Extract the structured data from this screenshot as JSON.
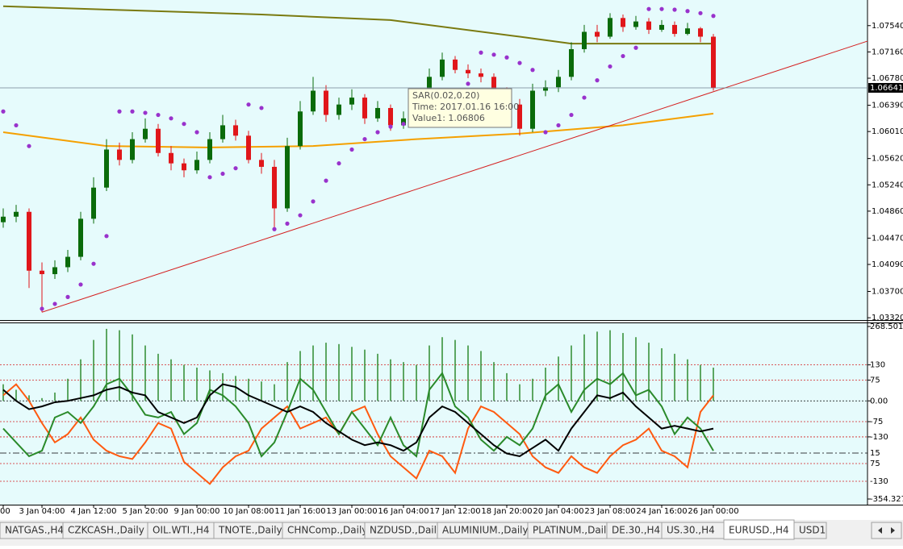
{
  "chart_data": [
    {
      "type": "candlestick",
      "grid": false,
      "bull_color": "#0a6b0a",
      "bear_color": "#e0161a",
      "categories": [
        "00",
        null,
        null,
        "3 Jan 04:00",
        null,
        null,
        null,
        "4 Jan 12:00",
        null,
        null,
        null,
        "5 Jan 20:00",
        null,
        null,
        null,
        "9 Jan 00:00",
        null,
        null,
        null,
        "10 Jan 08:00",
        null,
        null,
        null,
        "11 Jan 16:00",
        null,
        null,
        null,
        "13 Jan 00:00",
        null,
        null,
        null,
        "16 Jan 04:00",
        null,
        null,
        null,
        "17 Jan 12:00",
        null,
        null,
        null,
        "18 Jan 20:00",
        null,
        null,
        null,
        "20 Jan 04:00",
        null,
        null,
        null,
        "23 Jan 08:00",
        null,
        null,
        null,
        "24 Jan 16:00",
        null,
        null,
        null,
        "26 Jan 00:00"
      ],
      "open": [
        1.047,
        1.0478,
        1.0485,
        1.04,
        1.0395,
        1.0405,
        1.042,
        1.0475,
        1.052,
        1.0575,
        1.056,
        1.059,
        1.0605,
        1.057,
        1.0555,
        1.0545,
        1.056,
        1.059,
        1.061,
        1.0595,
        1.056,
        1.055,
        1.049,
        1.058,
        1.063,
        1.066,
        1.0625,
        1.064,
        1.065,
        1.062,
        1.0635,
        1.061,
        1.062,
        1.063,
        1.068,
        1.0705,
        1.069,
        1.0685,
        1.068,
        1.066,
        1.064,
        1.0605,
        1.066,
        1.0665,
        1.068,
        1.072,
        1.0745,
        1.0738,
        1.0765,
        1.0752,
        1.076,
        1.0748,
        1.0755,
        1.0742,
        1.075,
        1.0738
      ],
      "high": [
        1.049,
        1.0495,
        1.049,
        1.0412,
        1.0415,
        1.043,
        1.0485,
        1.0535,
        1.059,
        1.0585,
        1.06,
        1.062,
        1.0612,
        1.058,
        1.0562,
        1.0572,
        1.06,
        1.0625,
        1.0618,
        1.0602,
        1.057,
        1.056,
        1.0592,
        1.0645,
        1.068,
        1.0668,
        1.065,
        1.0662,
        1.0655,
        1.0645,
        1.064,
        1.063,
        1.064,
        1.0692,
        1.0715,
        1.071,
        1.0698,
        1.0692,
        1.0685,
        1.0665,
        1.0648,
        1.067,
        1.0675,
        1.069,
        1.073,
        1.0755,
        1.0755,
        1.0772,
        1.077,
        1.0768,
        1.0765,
        1.0762,
        1.076,
        1.0758,
        1.0752,
        1.0742
      ],
      "low": [
        1.0462,
        1.047,
        1.0375,
        1.034,
        1.0388,
        1.0398,
        1.0415,
        1.0468,
        1.0515,
        1.0552,
        1.0555,
        1.0585,
        1.0565,
        1.0545,
        1.0535,
        1.054,
        1.0555,
        1.0585,
        1.0588,
        1.0555,
        1.054,
        1.046,
        1.0485,
        1.0575,
        1.0625,
        1.0615,
        1.0618,
        1.0632,
        1.0612,
        1.0615,
        1.0602,
        1.0605,
        1.0615,
        1.0625,
        1.0675,
        1.0685,
        1.0678,
        1.0672,
        1.0655,
        1.0635,
        1.0595,
        1.06,
        1.0652,
        1.0658,
        1.0675,
        1.0715,
        1.073,
        1.0735,
        1.0745,
        1.0748,
        1.0742,
        1.0745,
        1.0738,
        1.074,
        1.073,
        1.066
      ],
      "close": [
        1.0478,
        1.0485,
        1.04,
        1.0395,
        1.0405,
        1.042,
        1.0475,
        1.052,
        1.0575,
        1.056,
        1.059,
        1.0605,
        1.057,
        1.0555,
        1.0545,
        1.056,
        1.059,
        1.061,
        1.0595,
        1.056,
        1.055,
        1.049,
        1.058,
        1.063,
        1.066,
        1.0625,
        1.064,
        1.065,
        1.062,
        1.0635,
        1.061,
        1.062,
        1.063,
        1.068,
        1.0705,
        1.069,
        1.0685,
        1.068,
        1.066,
        1.064,
        1.0605,
        1.066,
        1.0665,
        1.068,
        1.072,
        1.0745,
        1.0738,
        1.0765,
        1.0752,
        1.076,
        1.0748,
        1.0755,
        1.0742,
        1.075,
        1.0738,
        1.06641
      ],
      "ylim": [
        1.0331,
        1.0791
      ],
      "yticks": [
        {
          "value": 1.0754,
          "label": "1.07540"
        },
        {
          "value": 1.0716,
          "label": "1.07160"
        },
        {
          "value": 1.0678,
          "label": "1.06780"
        },
        {
          "value": 1.0639,
          "label": "1.06390"
        },
        {
          "value": 1.0601,
          "label": "1.06010"
        },
        {
          "value": 1.0562,
          "label": "1.05620"
        },
        {
          "value": 1.0524,
          "label": "1.05240"
        },
        {
          "value": 1.0486,
          "label": "1.04860"
        },
        {
          "value": 1.0447,
          "label": "1.04470"
        },
        {
          "value": 1.0409,
          "label": "1.04090"
        },
        {
          "value": 1.037,
          "label": "1.03700"
        },
        {
          "value": 1.0332,
          "label": "1.03320"
        }
      ],
      "last_price": 1.06641,
      "overlays": [
        {
          "color": "#7a7a10",
          "x": [
            0,
            10,
            20,
            30,
            40,
            44,
            55
          ],
          "values": [
            1.0782,
            1.0776,
            1.077,
            1.0762,
            1.0738,
            1.0728,
            1.0728
          ]
        },
        {
          "color": "#f5a000",
          "x": [
            0,
            8,
            16,
            24,
            32,
            40,
            48,
            55
          ],
          "values": [
            1.06,
            1.058,
            1.0578,
            1.058,
            1.059,
            1.0598,
            1.061,
            1.0627
          ]
        },
        {
          "color": "#d42020",
          "x": [
            3,
            67
          ],
          "values": [
            1.034,
            1.0732
          ]
        }
      ],
      "sar": {
        "color": "#9932cc",
        "values": [
          1.063,
          1.061,
          1.058,
          1.0345,
          1.0352,
          1.0362,
          1.038,
          1.041,
          1.045,
          1.063,
          1.063,
          1.0628,
          1.0625,
          1.062,
          1.0612,
          1.06,
          1.0535,
          1.054,
          1.0548,
          1.064,
          1.0635,
          1.046,
          1.0468,
          1.048,
          1.05,
          1.053,
          1.0555,
          1.0575,
          1.059,
          1.06,
          1.0608,
          1.0612,
          1.0615,
          1.063,
          1.0645,
          1.066,
          1.067,
          1.0715,
          1.0712,
          1.0708,
          1.07,
          1.069,
          1.06,
          1.061,
          1.0625,
          1.065,
          1.0675,
          1.0695,
          1.071,
          1.0722,
          1.0778,
          1.0778,
          1.0777,
          1.0775,
          1.0772,
          1.0768
        ]
      },
      "tooltip": [
        "SAR(0.02,0.20)",
        "Time: 2017.01.16 16:00",
        "Value1: 1.06806"
      ]
    },
    {
      "type": "oscillator",
      "ylim": [
        -354.3274,
        268.5012
      ],
      "yticks": [
        268.5012,
        130,
        75,
        {
          "value": 0,
          "label": "0.00"
        },
        -75,
        -130,
        -354.3274
      ],
      "annotations": [
        "15",
        "75",
        "-130"
      ],
      "histogram": {
        "color": "#2e8b2e",
        "values": [
          60,
          40,
          20,
          10,
          30,
          80,
          150,
          220,
          260,
          255,
          240,
          200,
          170,
          150,
          130,
          120,
          110,
          100,
          90,
          80,
          70,
          60,
          140,
          180,
          200,
          210,
          205,
          195,
          185,
          170,
          150,
          140,
          130,
          200,
          230,
          220,
          200,
          180,
          140,
          100,
          60,
          80,
          120,
          160,
          200,
          240,
          250,
          255,
          245,
          230,
          210,
          190,
          170,
          150,
          130,
          120
        ]
      },
      "lines": [
        {
          "color": "#ff5a10",
          "values": [
            20,
            60,
            0,
            -80,
            -150,
            -120,
            -60,
            -140,
            -180,
            -200,
            -210,
            -150,
            -80,
            -100,
            -220,
            -260,
            -300,
            -240,
            -200,
            -180,
            -100,
            -60,
            -20,
            -100,
            -80,
            -60,
            -120,
            -40,
            -20,
            -120,
            -200,
            -240,
            -280,
            -180,
            -200,
            -260,
            -100,
            -20,
            -40,
            -80,
            -120,
            -200,
            -240,
            -260,
            -200,
            -240,
            -260,
            -200,
            -160,
            -140,
            -100,
            -180,
            -200,
            -240,
            -40,
            20
          ]
        },
        {
          "color": "#2a8a2a",
          "values": [
            -100,
            -150,
            -200,
            -180,
            -60,
            -40,
            -80,
            -20,
            60,
            80,
            20,
            -50,
            -60,
            -40,
            -120,
            -80,
            40,
            20,
            -20,
            -80,
            -200,
            -150,
            -40,
            80,
            40,
            -40,
            -120,
            -40,
            -100,
            -160,
            -60,
            -160,
            -200,
            40,
            100,
            -20,
            -60,
            -140,
            -180,
            -130,
            -160,
            -100,
            20,
            60,
            -40,
            40,
            80,
            60,
            100,
            20,
            40,
            -20,
            -120,
            -60,
            -100,
            -180
          ]
        },
        {
          "color": "#000000",
          "values": [
            40,
            0,
            -30,
            -20,
            -5,
            0,
            10,
            20,
            40,
            50,
            30,
            20,
            -40,
            -60,
            -80,
            -60,
            20,
            60,
            50,
            20,
            0,
            -20,
            -40,
            -20,
            -40,
            -80,
            -110,
            -140,
            -160,
            -150,
            -160,
            -180,
            -150,
            -60,
            -20,
            -40,
            -80,
            -120,
            -160,
            -190,
            -200,
            -170,
            -140,
            -180,
            -100,
            -40,
            20,
            10,
            30,
            -20,
            -60,
            -100,
            -90,
            -100,
            -110,
            -100
          ]
        }
      ]
    }
  ],
  "tabs": [
    "NATGAS.,H4",
    "CZKCASH.,Daily",
    "OIL.WTI.,H4",
    "TNOTE.,Daily",
    "CHNComp.,Daily",
    "NZDUSD.,Daily",
    "ALUMINIUM.,Daily",
    "PLATINUM.,Daily",
    "DE.30.,H4",
    "US.30.,H4",
    "EURUSD.,H4",
    "USD1"
  ],
  "active_tab": 10
}
